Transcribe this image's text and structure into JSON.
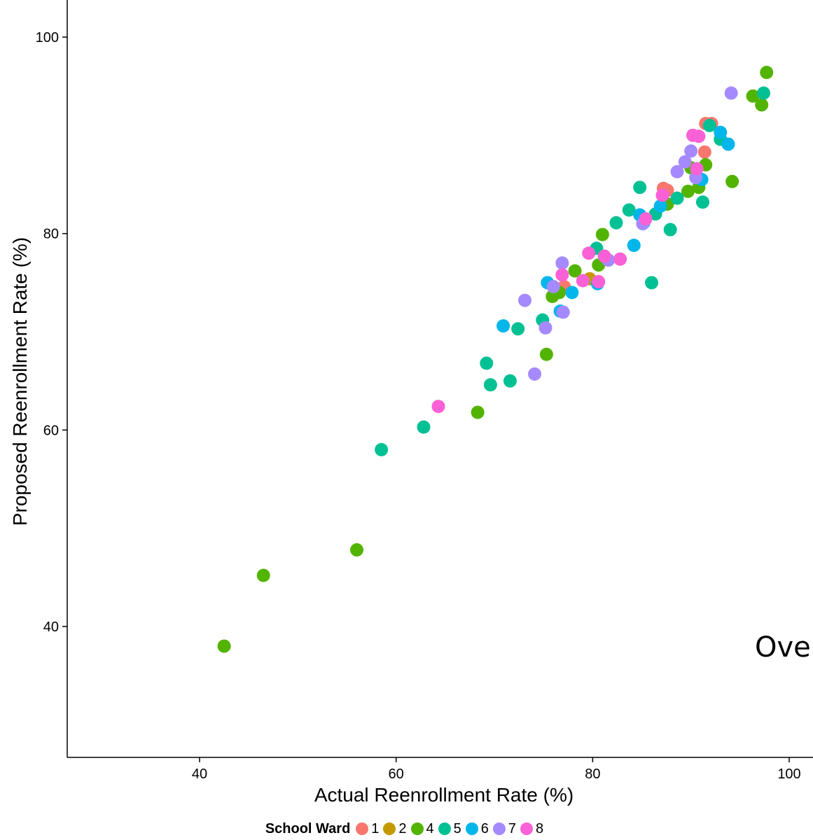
{
  "chart_data": {
    "type": "scatter",
    "title": "",
    "xlabel": "Actual Reenrollment Rate (%)",
    "ylabel": "Proposed Reenrollment Rate (%)",
    "xlim": [
      27,
      103
    ],
    "ylim": [
      27,
      104
    ],
    "x_ticks": [
      40,
      60,
      80,
      100
    ],
    "y_ticks": [
      40,
      60,
      80,
      100
    ],
    "grid": false,
    "legend_position": "bottom",
    "legend_title": "School Ward",
    "annotation": "Over",
    "series": [
      {
        "name": "1",
        "color": "#F8766D",
        "points": [
          [
            87.2,
            84.6
          ],
          [
            87.6,
            84.4
          ],
          [
            91.4,
            88.3
          ],
          [
            91.5,
            91.2
          ],
          [
            92.1,
            91.2
          ],
          [
            77.1,
            74.6
          ]
        ]
      },
      {
        "name": "2",
        "color": "#C49A00",
        "points": [
          [
            79.7,
            75.4
          ]
        ]
      },
      {
        "name": "4",
        "color": "#53B400",
        "points": [
          [
            42.5,
            38.0
          ],
          [
            46.5,
            45.2
          ],
          [
            56.0,
            47.8
          ],
          [
            68.3,
            61.8
          ],
          [
            75.3,
            67.7
          ],
          [
            76.6,
            74.0
          ],
          [
            75.9,
            73.6
          ],
          [
            78.2,
            76.2
          ],
          [
            80.6,
            76.8
          ],
          [
            81.0,
            79.9
          ],
          [
            87.6,
            83.0
          ],
          [
            89.7,
            84.3
          ],
          [
            90.8,
            84.7
          ],
          [
            91.5,
            87.0
          ],
          [
            94.2,
            85.3
          ],
          [
            96.3,
            94.0
          ],
          [
            97.2,
            93.1
          ],
          [
            97.7,
            96.4
          ],
          [
            90.0,
            86.7
          ]
        ]
      },
      {
        "name": "5",
        "color": "#00C094",
        "points": [
          [
            58.5,
            58.0
          ],
          [
            62.8,
            60.3
          ],
          [
            69.2,
            66.8
          ],
          [
            69.6,
            64.6
          ],
          [
            71.6,
            65.0
          ],
          [
            72.4,
            70.3
          ],
          [
            74.9,
            71.2
          ],
          [
            80.4,
            78.5
          ],
          [
            82.4,
            81.1
          ],
          [
            83.7,
            82.4
          ],
          [
            84.8,
            84.7
          ],
          [
            86.0,
            75.0
          ],
          [
            86.4,
            82.0
          ],
          [
            87.9,
            80.4
          ],
          [
            88.6,
            83.6
          ],
          [
            91.2,
            83.2
          ],
          [
            93.0,
            89.6
          ],
          [
            97.4,
            94.3
          ],
          [
            91.9,
            91.0
          ]
        ]
      },
      {
        "name": "6",
        "color": "#00B6EB",
        "points": [
          [
            70.9,
            70.6
          ],
          [
            75.4,
            75.0
          ],
          [
            76.7,
            72.1
          ],
          [
            77.9,
            74.0
          ],
          [
            80.5,
            74.9
          ],
          [
            84.2,
            78.8
          ],
          [
            84.8,
            81.9
          ],
          [
            85.2,
            81.1
          ],
          [
            86.9,
            82.8
          ],
          [
            91.1,
            85.5
          ],
          [
            93.0,
            90.3
          ],
          [
            93.8,
            89.1
          ]
        ]
      },
      {
        "name": "7",
        "color": "#A58AFF",
        "points": [
          [
            73.1,
            73.2
          ],
          [
            74.1,
            65.7
          ],
          [
            75.2,
            70.4
          ],
          [
            76.0,
            74.6
          ],
          [
            76.9,
            77.0
          ],
          [
            77.0,
            72.0
          ],
          [
            81.6,
            77.3
          ],
          [
            85.1,
            81.0
          ],
          [
            88.6,
            86.3
          ],
          [
            89.4,
            87.3
          ],
          [
            90.0,
            88.4
          ],
          [
            90.5,
            85.7
          ],
          [
            94.1,
            94.3
          ]
        ]
      },
      {
        "name": "8",
        "color": "#FB61D7",
        "points": [
          [
            64.3,
            62.4
          ],
          [
            76.9,
            75.8
          ],
          [
            79.0,
            75.2
          ],
          [
            79.6,
            78.0
          ],
          [
            80.6,
            75.1
          ],
          [
            81.2,
            77.7
          ],
          [
            82.8,
            77.4
          ],
          [
            85.4,
            81.5
          ],
          [
            87.1,
            83.9
          ],
          [
            90.2,
            90.0
          ],
          [
            90.8,
            89.9
          ],
          [
            90.6,
            86.6
          ]
        ]
      }
    ]
  }
}
